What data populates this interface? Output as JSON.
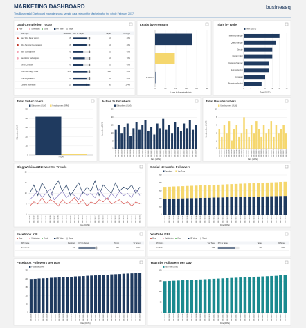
{
  "header": {
    "title": "MARKETING DASHBOARD",
    "subtitle": "This Business[q] Dashboard example shows sample data relevant for Marketing for the whole February 2017.",
    "logo": "businessq"
  },
  "goal_table": {
    "title": "Goal Completion Today",
    "legend": [
      "Poor",
      "Satisfactory",
      "Good",
      "KPI Value",
      "Target"
    ],
    "columns": [
      "Goal Type",
      "Achieved",
      "KPI vs Target",
      "Target",
      "% Target"
    ],
    "status_colors": [
      "#c0392b",
      "#c0392b",
      "#f4a3b4",
      "#f4a3b4",
      null,
      null,
      null,
      null
    ],
    "rows": [
      [
        "New Web Page Visitors",
        8,
        10,
        "80%"
      ],
      [
        "Web Seminar Registration",
        8,
        10,
        "80%"
      ],
      [
        "Blog Subscription",
        6,
        10,
        "60%"
      ],
      [
        "Newsletter Subscription",
        7,
        10,
        "70%"
      ],
      [
        "Email Contacts",
        6,
        10,
        "60%"
      ],
      [
        "Total Web Page Visits",
        215,
        250,
        "86%"
      ],
      [
        "Trial Registration",
        8,
        10,
        "80%"
      ],
      [
        "Content Download",
        62,
        50,
        "124%"
      ]
    ]
  },
  "facebook_kpi": {
    "title": "Facebook KPI",
    "legend": [
      "Poor",
      "Satisfactory",
      "Good",
      "KPI Value",
      "Target"
    ],
    "columns": [
      "KPI Name",
      "Facebook",
      "KPI vs Target",
      "Target",
      "% Target"
    ],
    "rows": [
      [
        "Facebook",
        236,
        250,
        "94%"
      ]
    ]
  },
  "youtube_kpi": {
    "title": "YouTube KPI",
    "legend": [
      "Poor",
      "Satisfactory",
      "Good",
      "KPI Value",
      "Target"
    ],
    "columns": [
      "KPI Name",
      "You Tube",
      "KPI vs Target",
      "Target",
      "% Target"
    ],
    "rows": [
      [
        "You Tube",
        178,
        200,
        "89%"
      ]
    ]
  },
  "chart_data": [
    {
      "type": "hbar",
      "title": "Leads by Program",
      "categories": [
        null,
        null,
        "ID Webinar"
      ],
      "values": [
        180,
        95,
        2
      ],
      "colors": [
        "#1f3a5f",
        "#f5d76e",
        "#1f3a5f"
      ],
      "xlim": [
        0,
        250
      ],
      "xticks": [
        0,
        50,
        100,
        150,
        200,
        250
      ],
      "xlabel": "Leads by Marketing Activity",
      "grid": true
    },
    {
      "type": "hbar",
      "title": "Trials by Role",
      "categories": [
        "Marketing Manager",
        "Quality Manager",
        "Director",
        "Director / CEO",
        "Operations Manager",
        "Business Analyst",
        "Consultant",
        "Professional Analyst"
      ],
      "series": [
        {
          "name": "Trials (DATE)",
          "color": "#1f3a5f",
          "values": [
            10,
            9,
            8,
            8,
            7,
            7,
            6,
            5
          ]
        }
      ],
      "xlim": [
        0,
        12
      ],
      "xticks": [
        0,
        2,
        4,
        6,
        8,
        10,
        12
      ],
      "xlabel": "Trials (DATE)",
      "grid": true
    },
    {
      "type": "bar",
      "title": "Total Subscribers",
      "categories": [
        "TODAY"
      ],
      "series": [
        {
          "name": "Subscribers (SUM)",
          "color": "#1f3a5f",
          "values": [
            420
          ]
        },
        {
          "name": "Unsubscribers (SUM)",
          "color": "#f5d76e",
          "values": [
            8
          ]
        }
      ],
      "ylim": [
        0,
        500
      ],
      "yticks": [
        0,
        100,
        200,
        300,
        400,
        500
      ],
      "ylabel": "Subscribers (SUM)",
      "grid": true
    },
    {
      "type": "bar",
      "title": "Active Subscribers",
      "categories": [
        "2017-02-01",
        "2017-02-02",
        "2017-02-03",
        "2017-02-04",
        "2017-02-05",
        "2017-02-06",
        "2017-02-07",
        "2017-02-08",
        "2017-02-09",
        "2017-02-10",
        "2017-02-11",
        "2017-02-12",
        "2017-02-13",
        "2017-02-14",
        "2017-02-15",
        "2017-02-16",
        "2017-02-17",
        "2017-02-18",
        "2017-02-19",
        "2017-02-20",
        "2017-02-21",
        "2017-02-22",
        "2017-02-23",
        "2017-02-24",
        "2017-02-25",
        "2017-02-26",
        "2017-02-27",
        "2017-02-28"
      ],
      "series": [
        {
          "name": "Subscribers (SUM)",
          "color": "#1f3a5f",
          "values": [
            12,
            15,
            10,
            14,
            16,
            8,
            13,
            17,
            12,
            15,
            18,
            11,
            14,
            9,
            16,
            13,
            19,
            12,
            15,
            10,
            17,
            14,
            11,
            16,
            13,
            18,
            12,
            15
          ]
        }
      ],
      "ylim": [
        0,
        25
      ],
      "yticks": [
        0,
        5,
        10,
        15,
        20,
        25
      ],
      "ylabel": "Subscribers (SUM)",
      "xlabel": "Date (DATE)",
      "grid": true
    },
    {
      "type": "bar",
      "title": "Total Unsubscribers",
      "categories": [
        "2017-02-01",
        "2017-02-02",
        "2017-02-03",
        "2017-02-04",
        "2017-02-05",
        "2017-02-06",
        "2017-02-07",
        "2017-02-08",
        "2017-02-09",
        "2017-02-10",
        "2017-02-11",
        "2017-02-12",
        "2017-02-13",
        "2017-02-14",
        "2017-02-15",
        "2017-02-16",
        "2017-02-17",
        "2017-02-18",
        "2017-02-19",
        "2017-02-20",
        "2017-02-21",
        "2017-02-22",
        "2017-02-23",
        "2017-02-24",
        "2017-02-25",
        "2017-02-26",
        "2017-02-27",
        "2017-02-28"
      ],
      "series": [
        {
          "name": "Unsubscribers (SUM)",
          "color": "#f5d76e",
          "values": [
            5,
            3,
            6,
            4,
            7,
            2,
            5,
            6,
            3,
            4,
            8,
            5,
            3,
            6,
            4,
            7,
            5,
            3,
            6,
            4,
            5,
            7,
            3,
            6,
            4,
            5,
            6,
            4
          ]
        }
      ],
      "ylim": [
        0,
        10
      ],
      "yticks": [
        0,
        2,
        4,
        6,
        8,
        10
      ],
      "ylabel": "Unsubscribers (SUM)",
      "xlabel": "Date (DATE)",
      "grid": true
    },
    {
      "type": "line",
      "title": "Blog,Webinar&Newsletter Trends",
      "categories": [
        "2017-02-01",
        "2017-02-02",
        "2017-02-03",
        "2017-02-04",
        "2017-02-05",
        "2017-02-06",
        "2017-02-07",
        "2017-02-08",
        "2017-02-09",
        "2017-02-10",
        "2017-02-11",
        "2017-02-12",
        "2017-02-13",
        "2017-02-14",
        "2017-02-15",
        "2017-02-16",
        "2017-02-17",
        "2017-02-18",
        "2017-02-19",
        "2017-02-20",
        "2017-02-21",
        "2017-02-22",
        "2017-02-23",
        "2017-02-24",
        "2017-02-25",
        "2017-02-26",
        "2017-02-27",
        "2017-02-28"
      ],
      "series": [
        {
          "color": "#1f3a5f",
          "values": [
            10,
            14,
            9,
            15,
            12,
            8,
            13,
            16,
            11,
            14,
            9,
            12,
            15,
            10,
            13,
            11,
            16,
            9,
            14,
            12,
            10,
            15,
            11,
            13,
            12,
            14,
            10,
            13
          ]
        },
        {
          "color": "#8a7fc2",
          "values": [
            7,
            9,
            11,
            8,
            10,
            12,
            7,
            9,
            11,
            8,
            10,
            9,
            7,
            11,
            9,
            10,
            8,
            12,
            9,
            7,
            10,
            8,
            11,
            9,
            10,
            8,
            12,
            9
          ]
        },
        {
          "color": "#d9534f",
          "values": [
            4,
            6,
            5,
            8,
            5,
            7,
            6,
            4,
            7,
            5,
            6,
            8,
            5,
            7,
            4,
            6,
            5,
            7,
            6,
            8,
            5,
            6,
            7,
            5,
            6,
            4,
            6,
            5
          ]
        }
      ],
      "ylim": [
        0,
        20
      ],
      "yticks": [
        0,
        5,
        10,
        15,
        20
      ],
      "xlabel": "Date (DATE)",
      "grid": true
    },
    {
      "type": "bar",
      "stacked": true,
      "title": "Social Networks Followers",
      "categories": [
        "2017-02-01",
        "2017-02-02",
        "2017-02-03",
        "2017-02-04",
        "2017-02-05",
        "2017-02-06",
        "2017-02-07",
        "2017-02-08",
        "2017-02-09",
        "2017-02-10",
        "2017-02-11",
        "2017-02-12",
        "2017-02-13",
        "2017-02-14",
        "2017-02-15",
        "2017-02-16",
        "2017-02-17",
        "2017-02-18",
        "2017-02-19",
        "2017-02-20",
        "2017-02-21",
        "2017-02-22",
        "2017-02-23",
        "2017-02-24",
        "2017-02-25",
        "2017-02-26",
        "2017-02-27",
        "2017-02-28"
      ],
      "series": [
        {
          "name": "Facebook",
          "color": "#1f3a5f",
          "values": [
            200,
            201,
            203,
            204,
            205,
            207,
            208,
            209,
            211,
            212,
            213,
            215,
            216,
            217,
            219,
            220,
            221,
            223,
            224,
            225,
            227,
            228,
            229,
            231,
            232,
            233,
            235,
            236
          ]
        },
        {
          "name": "You Tube",
          "color": "#f5d76e",
          "values": [
            150,
            151,
            152,
            153,
            154,
            155,
            156,
            157,
            158,
            159,
            160,
            161,
            162,
            163,
            164,
            165,
            166,
            167,
            168,
            169,
            170,
            171,
            172,
            173,
            174,
            175,
            177,
            178
          ]
        }
      ],
      "ylim": [
        0,
        500
      ],
      "yticks": [
        0,
        100,
        200,
        300,
        400,
        500
      ],
      "xlabel": "Date (DATE)",
      "grid": true
    },
    {
      "type": "bar",
      "title": "Facebook Followers per Day",
      "categories": [
        "2017-02-01",
        "2017-02-02",
        "2017-02-03",
        "2017-02-04",
        "2017-02-05",
        "2017-02-06",
        "2017-02-07",
        "2017-02-08",
        "2017-02-09",
        "2017-02-10",
        "2017-02-11",
        "2017-02-12",
        "2017-02-13",
        "2017-02-14",
        "2017-02-15",
        "2017-02-16",
        "2017-02-17",
        "2017-02-18",
        "2017-02-19",
        "2017-02-20",
        "2017-02-21",
        "2017-02-22",
        "2017-02-23",
        "2017-02-24",
        "2017-02-25",
        "2017-02-26",
        "2017-02-27",
        "2017-02-28"
      ],
      "series": [
        {
          "name": "Facebook (SUM)",
          "color": "#1f3a5f",
          "values": [
            200,
            201,
            203,
            204,
            205,
            207,
            208,
            209,
            211,
            212,
            213,
            215,
            216,
            217,
            219,
            220,
            221,
            223,
            224,
            225,
            227,
            228,
            229,
            231,
            232,
            233,
            235,
            236
          ]
        }
      ],
      "ylim": [
        0,
        250
      ],
      "yticks": [
        0,
        50,
        100,
        150,
        200,
        250
      ],
      "xlabel": "Date (DATE)",
      "grid": true
    },
    {
      "type": "bar",
      "title": "YouTube Followers per Day",
      "categories": [
        "2017-02-01",
        "2017-02-02",
        "2017-02-03",
        "2017-02-04",
        "2017-02-05",
        "2017-02-06",
        "2017-02-07",
        "2017-02-08",
        "2017-02-09",
        "2017-02-10",
        "2017-02-11",
        "2017-02-12",
        "2017-02-13",
        "2017-02-14",
        "2017-02-15",
        "2017-02-16",
        "2017-02-17",
        "2017-02-18",
        "2017-02-19",
        "2017-02-20",
        "2017-02-21",
        "2017-02-22",
        "2017-02-23",
        "2017-02-24",
        "2017-02-25",
        "2017-02-26",
        "2017-02-27",
        "2017-02-28"
      ],
      "series": [
        {
          "name": "You Tube (SUM)",
          "color": "#1a8a8f",
          "values": [
            150,
            151,
            152,
            153,
            154,
            155,
            156,
            157,
            158,
            159,
            160,
            161,
            162,
            163,
            164,
            165,
            166,
            167,
            168,
            169,
            170,
            171,
            172,
            173,
            174,
            175,
            177,
            178
          ]
        }
      ],
      "ylim": [
        0,
        200
      ],
      "yticks": [
        0,
        50,
        100,
        150,
        200
      ],
      "xlabel": "Date (DATE)",
      "grid": true
    }
  ]
}
